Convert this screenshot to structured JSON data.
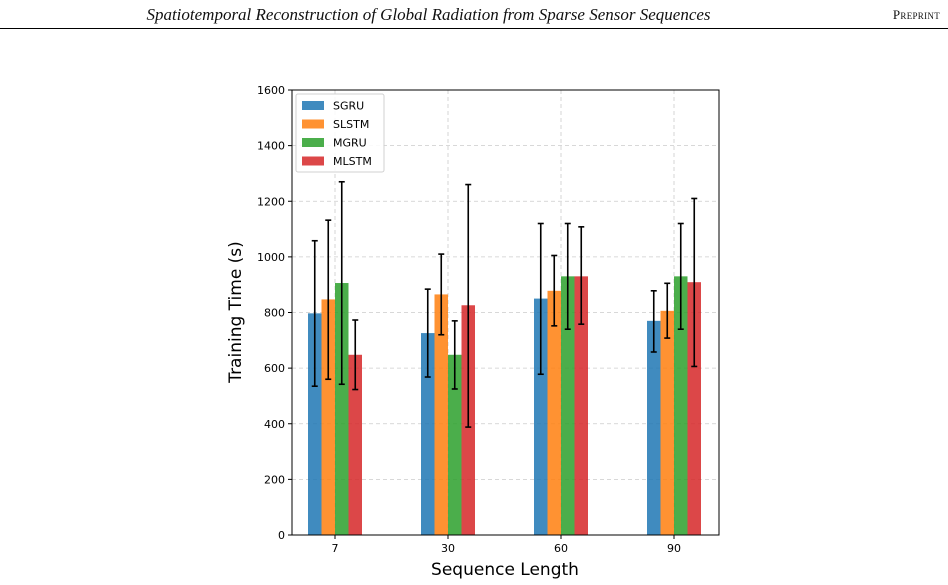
{
  "header": {
    "title": "Spatiotemporal Reconstruction of Global Radiation from Sparse Sensor Sequences",
    "tag": "Preprint"
  },
  "chart_data": {
    "type": "bar",
    "xlabel": "Sequence Length",
    "ylabel": "Training Time (s)",
    "categories": [
      "7",
      "30",
      "60",
      "90"
    ],
    "ylim": [
      0,
      1600
    ],
    "yticks": [
      0,
      200,
      400,
      600,
      800,
      1000,
      1200,
      1400,
      1600
    ],
    "grid": true,
    "legend_position": "top-left",
    "error_bars": true,
    "series": [
      {
        "name": "SGRU",
        "color": "#1f77b4",
        "values": [
          797,
          726,
          850,
          770
        ],
        "err_low": [
          535,
          568,
          578,
          658
        ],
        "err_high": [
          1058,
          884,
          1120,
          878
        ]
      },
      {
        "name": "SLSTM",
        "color": "#ff7f0e",
        "values": [
          847,
          865,
          878,
          806
        ],
        "err_low": [
          560,
          720,
          752,
          708
        ],
        "err_high": [
          1132,
          1010,
          1005,
          905
        ]
      },
      {
        "name": "MGRU",
        "color": "#2ca02c",
        "values": [
          906,
          648,
          930,
          930
        ],
        "err_low": [
          542,
          525,
          740,
          740
        ],
        "err_high": [
          1270,
          770,
          1120,
          1120
        ]
      },
      {
        "name": "MLSTM",
        "color": "#d62728",
        "values": [
          648,
          826,
          930,
          909
        ],
        "err_low": [
          523,
          388,
          758,
          606
        ],
        "err_high": [
          773,
          1260,
          1108,
          1210
        ]
      }
    ]
  }
}
